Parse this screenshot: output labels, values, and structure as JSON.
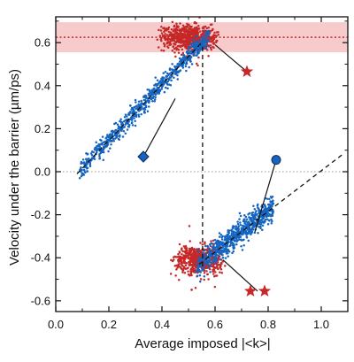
{
  "chart_data": {
    "type": "scatter",
    "title": "",
    "xlabel": "Average imposed |<k>|",
    "ylabel": "Velocity under the barrier (µm/ps)",
    "xlim": [
      0.0,
      1.1
    ],
    "ylim": [
      -0.65,
      0.72
    ],
    "x_ticks": [
      0.0,
      0.2,
      0.4,
      0.6,
      0.8,
      1.0
    ],
    "x_tick_labels": [
      "0.0",
      "0.2",
      "0.4",
      "0.6",
      "0.8",
      "1.0"
    ],
    "y_ticks": [
      -0.6,
      -0.4,
      -0.2,
      0.0,
      0.2,
      0.4,
      0.6
    ],
    "y_tick_labels": [
      "-0.6",
      "-0.4",
      "-0.2",
      "0.0",
      "0.2",
      "0.4",
      "0.6"
    ],
    "grid": false,
    "legend": "none",
    "colors": {
      "red": "#c62828",
      "blue": "#1565c0",
      "band": "#f4b9b9",
      "zero_line": "#aaaaaa",
      "black": "#111111"
    },
    "band": {
      "y_min": 0.555,
      "y_max": 0.695,
      "y_center": 0.625
    },
    "zero_line_y": 0.0,
    "guide_lines": [
      {
        "name": "upper-branch-fit",
        "x": [
          0.08,
          0.55
        ],
        "y": [
          -0.01,
          0.6
        ],
        "style": "dashed"
      },
      {
        "name": "lower-branch-fit",
        "x": [
          0.54,
          1.08
        ],
        "y": [
          -0.43,
          0.08
        ],
        "style": "dashed"
      },
      {
        "name": "vertical-jump",
        "x": [
          0.553,
          0.553
        ],
        "y": [
          0.58,
          -0.45
        ],
        "style": "dashed"
      }
    ],
    "clusters": [
      {
        "name": "red-top",
        "color": "red",
        "x_range": [
          0.38,
          0.62
        ],
        "y_center": 0.625,
        "y_spread": 0.028,
        "count": 700
      },
      {
        "name": "blue-upper-branch",
        "color": "blue",
        "x_range": [
          0.09,
          0.58
        ],
        "fit": "upper-branch-fit",
        "y_spread": 0.022,
        "count": 700
      },
      {
        "name": "red-bottom",
        "color": "red",
        "x_range": [
          0.43,
          0.64
        ],
        "y_center": -0.41,
        "y_spread": 0.03,
        "count": 600
      },
      {
        "name": "blue-lower-branch",
        "color": "blue",
        "x_range": [
          0.53,
          0.82
        ],
        "fit": "lower-branch-fit",
        "y_spread": 0.028,
        "count": 700
      }
    ],
    "markers": [
      {
        "name": "star-marker",
        "shape": "star",
        "color": "red",
        "x": 0.72,
        "y": 0.465,
        "pointer_to": [
          0.6,
          0.59
        ]
      },
      {
        "name": "diamond-marker",
        "shape": "diamond",
        "color": "blue",
        "x": 0.33,
        "y": 0.07,
        "pointer_to": [
          0.45,
          0.34
        ]
      },
      {
        "name": "circle-marker",
        "shape": "circle",
        "color": "blue",
        "x": 0.83,
        "y": 0.055,
        "pointer_to": [
          0.75,
          -0.28
        ]
      },
      {
        "name": "double-star-marker",
        "shape": "double-star",
        "color": "red",
        "x": 0.76,
        "y": -0.555,
        "pointer_to": [
          0.63,
          -0.41
        ]
      }
    ]
  }
}
